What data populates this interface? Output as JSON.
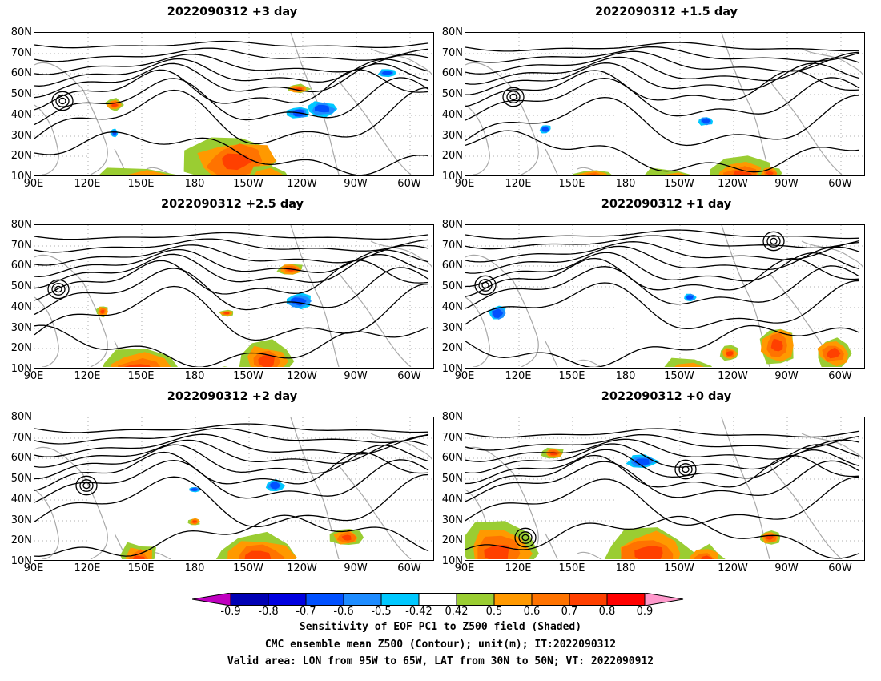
{
  "panels": [
    {
      "title": "2022090312 +3 day"
    },
    {
      "title": "2022090312 +1.5 day"
    },
    {
      "title": "2022090312 +2.5 day"
    },
    {
      "title": "2022090312 +1 day"
    },
    {
      "title": "2022090312 +2 day"
    },
    {
      "title": "2022090312 +0 day"
    }
  ],
  "axes": {
    "lat_labels": [
      "80N",
      "70N",
      "60N",
      "50N",
      "40N",
      "30N",
      "20N",
      "10N"
    ],
    "lon_labels": [
      "90E",
      "120E",
      "150E",
      "180",
      "150W",
      "120W",
      "90W",
      "60W"
    ]
  },
  "colorbar": {
    "labels": [
      "-0.9",
      "-0.8",
      "-0.7",
      "-0.6",
      "-0.5",
      "-0.42",
      "0.42",
      "0.5",
      "0.6",
      "0.7",
      "0.8",
      "0.9"
    ],
    "colors": [
      "#c000c0",
      "#0000b4",
      "#0000e0",
      "#0050ff",
      "#1e8cff",
      "#00c8ff",
      "#ffffff",
      "#9acd32",
      "#ff9900",
      "#ff7300",
      "#ff4000",
      "#ff0000",
      "#ff99cc"
    ]
  },
  "caption": {
    "line1": "Sensitivity of EOF PC1 to Z500 field (Shaded)",
    "line2": "CMC ensemble mean Z500 (Contour); unit(m); IT:2022090312",
    "line3": "Valid area: LON from 95W to 65W, LAT from 30N to 50N; VT: 2022090912"
  }
}
